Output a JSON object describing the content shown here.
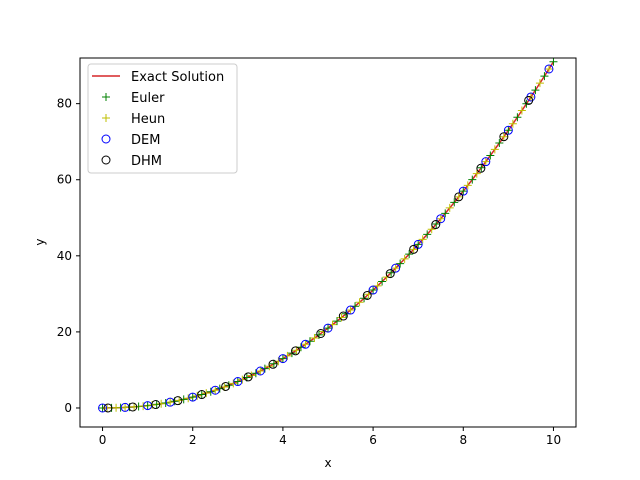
{
  "chart_data": {
    "type": "line",
    "title": "",
    "xlabel": "x",
    "ylabel": "y",
    "xlim": [
      -0.5,
      10.5
    ],
    "ylim": [
      -5,
      92
    ],
    "xticks": [
      0,
      2,
      4,
      6,
      8,
      10
    ],
    "yticks": [
      0,
      20,
      40,
      60,
      80
    ],
    "grid": false,
    "legend_position": "upper left",
    "series": [
      {
        "name": "Exact Solution",
        "kind": "line",
        "color": "#d62728"
      },
      {
        "name": "Euler",
        "kind": "marker",
        "marker": "plus",
        "color": "#008000"
      },
      {
        "name": "Heun",
        "kind": "marker",
        "marker": "plus",
        "color": "#bfbf00"
      },
      {
        "name": "DEM",
        "kind": "marker",
        "marker": "circle",
        "color": "#0000ff"
      },
      {
        "name": "DHM",
        "kind": "marker",
        "marker": "circle",
        "color": "#000000"
      }
    ],
    "exact_curve": "y = x^2 - x + 1 - e^(-x)",
    "euler_step": 0.2,
    "heun_step": 0.2,
    "dem_x": [
      0.0,
      0.5,
      1.0,
      1.5,
      2.0,
      2.5,
      3.0,
      3.5,
      4.0,
      4.5,
      5.0,
      5.5,
      6.0,
      6.5,
      7.0,
      7.5,
      8.0,
      8.5,
      9.0,
      9.5,
      9.9
    ],
    "dhm_x": [
      0.12,
      0.67,
      1.18,
      1.67,
      2.2,
      2.73,
      3.23,
      3.78,
      4.28,
      4.84,
      5.34,
      5.87,
      6.38,
      6.9,
      7.39,
      7.9,
      8.39,
      8.9,
      9.45
    ]
  }
}
